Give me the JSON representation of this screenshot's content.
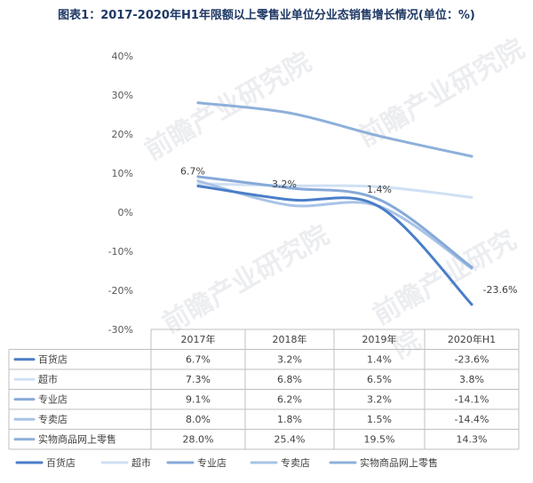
{
  "chart_data": {
    "type": "line",
    "title": "图表1：2017-2020年H1年限额以上零售业单位分业态销售增长情况(单位：%)",
    "categories": [
      "2017年",
      "2018年",
      "2019年",
      "2020年H1"
    ],
    "y_ticks": [
      "40%",
      "30%",
      "20%",
      "10%",
      "0%",
      "-10%",
      "-20%",
      "-30%"
    ],
    "ylim": [
      -30,
      40
    ],
    "grid": false,
    "legend_position": "bottom",
    "series": [
      {
        "name": "百货店",
        "values": [
          6.7,
          3.2,
          1.4,
          -23.6
        ],
        "display": [
          "6.7%",
          "3.2%",
          "1.4%",
          "-23.6%"
        ],
        "color": "#4a7ec8"
      },
      {
        "name": "超市",
        "values": [
          7.3,
          6.8,
          6.5,
          3.8
        ],
        "display": [
          "7.3%",
          "6.8%",
          "6.5%",
          "3.8%"
        ],
        "color": "#cfe0f3"
      },
      {
        "name": "专业店",
        "values": [
          9.1,
          6.2,
          3.2,
          -14.1
        ],
        "display": [
          "9.1%",
          "6.2%",
          "3.2%",
          "-14.1%"
        ],
        "color": "#86a9d8"
      },
      {
        "name": "专卖店",
        "values": [
          8.0,
          1.8,
          1.5,
          -14.4
        ],
        "display": [
          "8.0%",
          "1.8%",
          "1.5%",
          "-14.4%"
        ],
        "color": "#a8c3e6"
      },
      {
        "name": "实物商品网上零售",
        "values": [
          28.0,
          25.4,
          19.5,
          14.3
        ],
        "display": [
          "28.0%",
          "25.4%",
          "19.5%",
          "14.3%"
        ],
        "color": "#8eb0da"
      }
    ],
    "data_labels": [
      {
        "series": "百货店",
        "index": 0,
        "text": "6.7%"
      },
      {
        "series": "百货店",
        "index": 1,
        "text": "3.2%"
      },
      {
        "series": "百货店",
        "index": 2,
        "text": "1.4%"
      },
      {
        "series": "百货店",
        "index": 3,
        "text": "-23.6%"
      }
    ],
    "watermark": "前瞻产业研究院"
  }
}
